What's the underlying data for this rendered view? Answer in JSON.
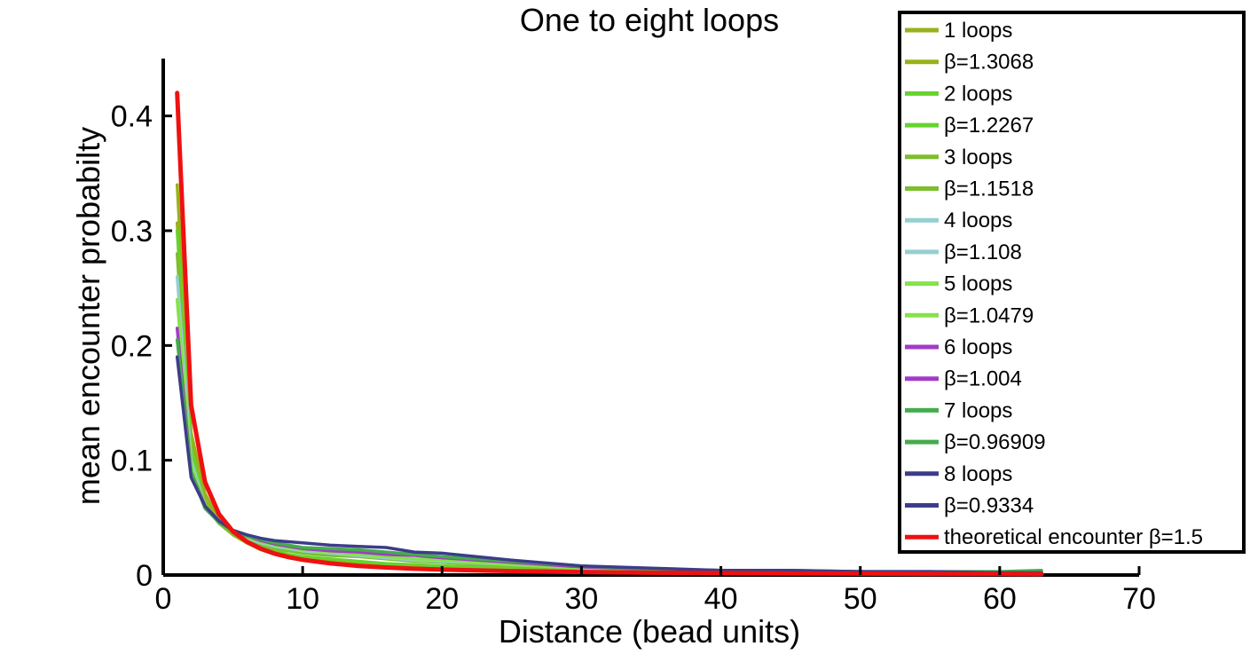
{
  "chart_data": {
    "type": "line",
    "title": "One to eight loops",
    "xlabel": "Distance (bead units)",
    "ylabel": "mean encounter probabilty",
    "xlim": [
      0,
      70
    ],
    "ylim": [
      0,
      0.45
    ],
    "xticks": [
      "0",
      "10",
      "20",
      "30",
      "40",
      "50",
      "60",
      "70"
    ],
    "yticks": [
      "0",
      "0.1",
      "0.2",
      "0.3",
      "0.4"
    ],
    "grid": false,
    "legend_position": "top-right",
    "legend": [
      {
        "label": "1 loops",
        "color": "#98b21a"
      },
      {
        "label": "β=1.3068",
        "color": "#98b21a"
      },
      {
        "label": "2 loops",
        "color": "#66d22e"
      },
      {
        "label": "β=1.2267",
        "color": "#66d22e"
      },
      {
        "label": "3 loops",
        "color": "#7cbe2e"
      },
      {
        "label": "β=1.1518",
        "color": "#7cbe2e"
      },
      {
        "label": "4 loops",
        "color": "#94cfd2"
      },
      {
        "label": "β=1.108",
        "color": "#94cfd2"
      },
      {
        "label": "5 loops",
        "color": "#86e24a"
      },
      {
        "label": "β=1.0479",
        "color": "#86e24a"
      },
      {
        "label": "6 loops",
        "color": "#a23bc7"
      },
      {
        "label": "β=1.004",
        "color": "#a23bc7"
      },
      {
        "label": "7 loops",
        "color": "#44ac4c"
      },
      {
        "label": "β=0.96909",
        "color": "#44ac4c"
      },
      {
        "label": "8 loops",
        "color": "#3c3c8a"
      },
      {
        "label": "β=0.9334",
        "color": "#3c3c8a"
      },
      {
        "label": "theoretical encounter β=1.5",
        "color": "#ee1111"
      }
    ],
    "x": [
      1,
      2,
      3,
      4,
      5,
      6,
      7,
      8,
      9,
      10,
      12,
      14,
      16,
      18,
      20,
      25,
      30,
      35,
      40,
      45,
      50,
      55,
      60,
      63
    ],
    "series": [
      {
        "name": "1 loops",
        "color": "#98b21a",
        "values": [
          0.34,
          0.12,
          0.065,
          0.045,
          0.035,
          0.028,
          0.022,
          0.018,
          0.015,
          0.013,
          0.011,
          0.009,
          0.008,
          0.007,
          0.006,
          0.004,
          0.003,
          0.003,
          0.002,
          0.002,
          0.002,
          0.001,
          0.001,
          0.001
        ]
      },
      {
        "name": "β=1.3068",
        "color": "#98b21a",
        "values": [
          0.3068,
          0.124,
          0.071,
          0.048,
          0.036,
          0.028,
          0.023,
          0.019,
          0.016,
          0.015,
          0.012,
          0.01,
          0.008,
          0.007,
          0.006,
          0.005,
          0.004,
          0.003,
          0.003,
          0.002,
          0.002,
          0.002,
          0.002,
          0.001
        ]
      },
      {
        "name": "2 loops",
        "color": "#66d22e",
        "values": [
          0.3,
          0.11,
          0.062,
          0.045,
          0.036,
          0.03,
          0.025,
          0.021,
          0.018,
          0.016,
          0.014,
          0.012,
          0.01,
          0.009,
          0.008,
          0.006,
          0.004,
          0.003,
          0.003,
          0.002,
          0.002,
          0.002,
          0.001,
          0.001
        ]
      },
      {
        "name": "3 loops",
        "color": "#7cbe2e",
        "values": [
          0.28,
          0.1,
          0.06,
          0.045,
          0.037,
          0.031,
          0.027,
          0.023,
          0.021,
          0.019,
          0.017,
          0.016,
          0.014,
          0.012,
          0.011,
          0.008,
          0.005,
          0.004,
          0.003,
          0.003,
          0.002,
          0.002,
          0.002,
          0.002
        ]
      },
      {
        "name": "4 loops",
        "color": "#94cfd2",
        "values": [
          0.26,
          0.1,
          0.06,
          0.046,
          0.038,
          0.032,
          0.028,
          0.025,
          0.023,
          0.021,
          0.019,
          0.017,
          0.015,
          0.013,
          0.012,
          0.009,
          0.006,
          0.004,
          0.003,
          0.003,
          0.002,
          0.002,
          0.002,
          0.002
        ]
      },
      {
        "name": "5 loops",
        "color": "#86e24a",
        "values": [
          0.24,
          0.095,
          0.06,
          0.046,
          0.038,
          0.033,
          0.029,
          0.026,
          0.024,
          0.022,
          0.02,
          0.018,
          0.016,
          0.014,
          0.013,
          0.009,
          0.006,
          0.005,
          0.004,
          0.003,
          0.003,
          0.002,
          0.002,
          0.003
        ]
      },
      {
        "name": "6 loops",
        "color": "#a23bc7",
        "values": [
          0.215,
          0.09,
          0.06,
          0.047,
          0.039,
          0.034,
          0.03,
          0.027,
          0.025,
          0.023,
          0.021,
          0.02,
          0.018,
          0.017,
          0.015,
          0.011,
          0.007,
          0.005,
          0.004,
          0.003,
          0.003,
          0.002,
          0.002,
          0.002
        ]
      },
      {
        "name": "7 loops",
        "color": "#44ac4c",
        "values": [
          0.205,
          0.09,
          0.058,
          0.046,
          0.038,
          0.034,
          0.031,
          0.028,
          0.026,
          0.024,
          0.023,
          0.022,
          0.02,
          0.018,
          0.016,
          0.012,
          0.008,
          0.005,
          0.004,
          0.004,
          0.003,
          0.003,
          0.003,
          0.004
        ]
      },
      {
        "name": "8 loops",
        "color": "#3c3c8a",
        "values": [
          0.19,
          0.085,
          0.06,
          0.047,
          0.039,
          0.035,
          0.032,
          0.03,
          0.029,
          0.028,
          0.026,
          0.025,
          0.024,
          0.02,
          0.019,
          0.013,
          0.008,
          0.006,
          0.004,
          0.004,
          0.003,
          0.003,
          0.002,
          0.002
        ]
      },
      {
        "name": "theoretical encounter β=1.5",
        "color": "#ee1111",
        "values": [
          0.42,
          0.148,
          0.081,
          0.053,
          0.038,
          0.029,
          0.023,
          0.0186,
          0.0156,
          0.0133,
          0.0101,
          0.008,
          0.0066,
          0.0055,
          0.0047,
          0.0034,
          0.0026,
          0.002,
          0.0017,
          0.0014,
          0.0012,
          0.001,
          0.0009,
          0.0008
        ]
      }
    ]
  }
}
